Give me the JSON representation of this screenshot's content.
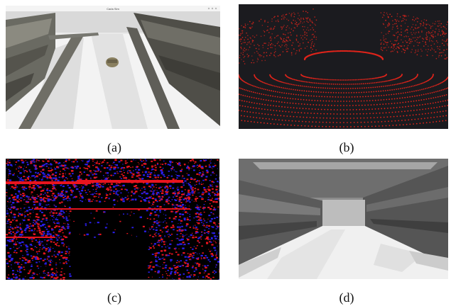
{
  "panels": [
    {
      "id": "a",
      "caption": "(a)",
      "description_icon": "rgb-render-image",
      "window_title": "Carla Sim"
    },
    {
      "id": "b",
      "caption": "(b)",
      "description_icon": "lidar-pointcloud-image"
    },
    {
      "id": "c",
      "caption": "(c)",
      "description_icon": "event-camera-image"
    },
    {
      "id": "d",
      "caption": "(d)",
      "description_icon": "grayscale-render-image"
    }
  ],
  "colors": {
    "lidar_points": "#e0241b",
    "lidar_bg": "#1b1b1f",
    "event_positive": "#2a1ee8",
    "event_negative": "#e8141e",
    "snow": "#f2f2f2"
  }
}
